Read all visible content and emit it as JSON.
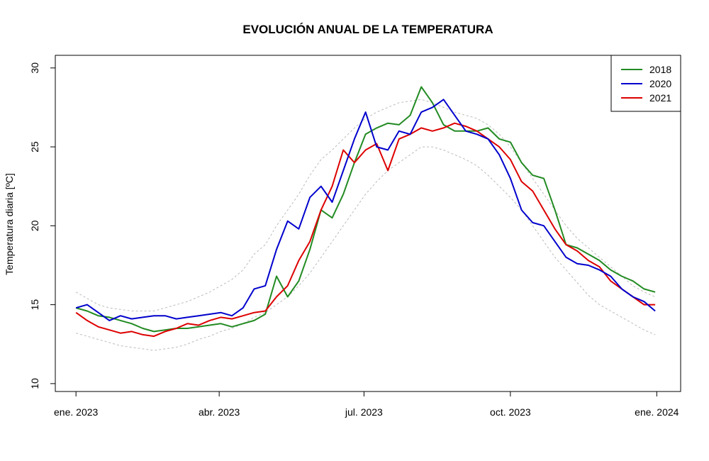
{
  "chart_data": {
    "type": "line",
    "title": "EVOLUCIÓN ANUAL DE LA TEMPERATURA",
    "xlabel": "",
    "ylabel": "Temperatura diaria [ºC]",
    "x_ticks": [
      {
        "label": "ene. 2023",
        "date": "2023-01-01"
      },
      {
        "label": "abr. 2023",
        "date": "2023-04-01"
      },
      {
        "label": "jul. 2023",
        "date": "2023-07-01"
      },
      {
        "label": "oct. 2023",
        "date": "2023-10-01"
      },
      {
        "label": "ene. 2024",
        "date": "2024-01-01"
      }
    ],
    "xlim": [
      "2022-12-19",
      "2024-01-16"
    ],
    "y_ticks": [
      10,
      15,
      20,
      25,
      30
    ],
    "ylim": [
      9.5,
      30.8
    ],
    "grid": false,
    "legend_position": "top-right",
    "x": [
      "2023-01-01",
      "2023-01-08",
      "2023-01-15",
      "2023-01-22",
      "2023-01-29",
      "2023-02-05",
      "2023-02-12",
      "2023-02-19",
      "2023-02-26",
      "2023-03-05",
      "2023-03-12",
      "2023-03-19",
      "2023-03-26",
      "2023-04-02",
      "2023-04-09",
      "2023-04-16",
      "2023-04-23",
      "2023-04-30",
      "2023-05-07",
      "2023-05-14",
      "2023-05-21",
      "2023-05-28",
      "2023-06-04",
      "2023-06-11",
      "2023-06-18",
      "2023-06-25",
      "2023-07-02",
      "2023-07-09",
      "2023-07-16",
      "2023-07-23",
      "2023-07-30",
      "2023-08-06",
      "2023-08-13",
      "2023-08-20",
      "2023-08-27",
      "2023-09-03",
      "2023-09-10",
      "2023-09-17",
      "2023-09-24",
      "2023-10-01",
      "2023-10-08",
      "2023-10-15",
      "2023-10-22",
      "2023-10-29",
      "2023-11-05",
      "2023-11-12",
      "2023-11-19",
      "2023-11-26",
      "2023-12-03",
      "2023-12-10",
      "2023-12-17",
      "2023-12-24",
      "2023-12-31"
    ],
    "series": [
      {
        "name": "2018",
        "color": "#228B22",
        "values": [
          14.8,
          14.6,
          14.3,
          14.2,
          14.0,
          13.8,
          13.5,
          13.3,
          13.4,
          13.5,
          13.5,
          13.6,
          13.7,
          13.8,
          13.6,
          13.8,
          14.0,
          14.4,
          16.8,
          15.5,
          16.5,
          18.5,
          21.0,
          20.5,
          22.0,
          24.0,
          25.8,
          26.2,
          26.5,
          26.4,
          27.0,
          28.8,
          27.8,
          26.4,
          26.0,
          26.0,
          26.0,
          26.2,
          25.5,
          25.3,
          24.0,
          23.2,
          23.0,
          21.0,
          18.8,
          18.6,
          18.2,
          17.8,
          17.2,
          16.8,
          16.5,
          16.0,
          15.8
        ]
      },
      {
        "name": "2020",
        "color": "#0000CD",
        "values": [
          14.8,
          15.0,
          14.5,
          14.0,
          14.3,
          14.1,
          14.2,
          14.3,
          14.3,
          14.1,
          14.2,
          14.3,
          14.4,
          14.5,
          14.3,
          14.8,
          16.0,
          16.2,
          18.5,
          20.3,
          19.8,
          21.8,
          22.5,
          21.5,
          23.5,
          25.5,
          27.2,
          25.0,
          24.8,
          26.0,
          25.8,
          27.2,
          27.5,
          28.0,
          27.0,
          26.0,
          25.8,
          25.5,
          24.5,
          23.0,
          21.0,
          20.2,
          20.0,
          19.0,
          18.0,
          17.6,
          17.5,
          17.2,
          16.8,
          16.0,
          15.5,
          15.2,
          14.6
        ]
      },
      {
        "name": "2021",
        "color": "#DD0000",
        "values": [
          14.5,
          14.0,
          13.6,
          13.4,
          13.2,
          13.3,
          13.1,
          13.0,
          13.3,
          13.5,
          13.8,
          13.7,
          14.0,
          14.2,
          14.1,
          14.3,
          14.5,
          14.6,
          15.5,
          16.2,
          17.8,
          19.0,
          21.0,
          22.5,
          24.8,
          24.0,
          24.8,
          25.2,
          23.5,
          25.5,
          25.8,
          26.2,
          26.0,
          26.2,
          26.5,
          26.3,
          26.0,
          25.5,
          25.0,
          24.2,
          22.8,
          22.2,
          21.0,
          19.8,
          18.8,
          18.4,
          17.8,
          17.4,
          16.5,
          16.0,
          15.5,
          15.0,
          15.0
        ]
      },
      {
        "name": "",
        "color": "#BBBBBB",
        "dashed": true,
        "values": [
          15.8,
          15.4,
          15.0,
          14.8,
          14.7,
          14.6,
          14.6,
          14.6,
          14.8,
          15.0,
          15.2,
          15.5,
          15.8,
          16.2,
          16.6,
          17.2,
          18.2,
          18.8,
          20.0,
          21.0,
          22.0,
          23.2,
          24.2,
          24.8,
          25.5,
          26.2,
          26.8,
          27.2,
          27.5,
          27.8,
          27.9,
          28.0,
          27.8,
          27.5,
          27.2,
          27.0,
          26.8,
          26.4,
          25.8,
          25.0,
          24.0,
          23.0,
          22.0,
          21.0,
          20.0,
          19.2,
          18.6,
          18.0,
          17.4,
          16.8,
          16.2,
          15.8,
          15.5
        ]
      },
      {
        "name": "",
        "color": "#BBBBBB",
        "dashed": true,
        "values": [
          13.2,
          13.0,
          12.8,
          12.6,
          12.4,
          12.3,
          12.2,
          12.1,
          12.2,
          12.3,
          12.5,
          12.8,
          13.0,
          13.3,
          13.5,
          13.8,
          14.2,
          14.5,
          15.0,
          15.5,
          16.2,
          17.0,
          18.0,
          19.0,
          20.0,
          21.0,
          22.0,
          22.8,
          23.5,
          24.0,
          24.5,
          25.0,
          25.0,
          24.8,
          24.5,
          24.2,
          23.8,
          23.2,
          22.5,
          21.8,
          21.0,
          20.0,
          19.0,
          18.0,
          17.2,
          16.4,
          15.6,
          15.0,
          14.6,
          14.2,
          13.8,
          13.4,
          13.1
        ]
      }
    ]
  }
}
